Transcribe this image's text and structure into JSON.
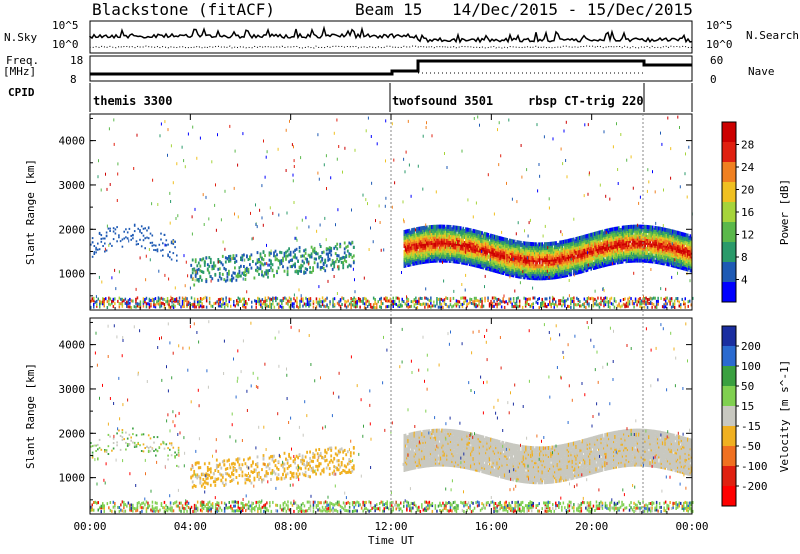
{
  "header": {
    "station": "Blackstone (fitACF)",
    "beam": "Beam 15",
    "dates": "14/Dec/2015 - 15/Dec/2015"
  },
  "top_panel": {
    "left_label": "N.Sky",
    "right_label": "N.Search",
    "left_ticks": [
      "10^5",
      "10^0"
    ],
    "right_ticks": [
      "10^5",
      "10^0"
    ]
  },
  "freq_panel": {
    "left_label_line1": "Freq.",
    "left_label_line2": "[MHz]",
    "right_label": "Nave",
    "left_ticks": [
      "18",
      "8"
    ],
    "right_ticks": [
      "60",
      "0"
    ]
  },
  "cpid": {
    "label": "CPID",
    "segments": [
      "themis 3300",
      "twofsound 3501",
      "rbsp CT-trig 220"
    ]
  },
  "chart_data": [
    {
      "type": "heatmap",
      "title": "Power",
      "xlabel": "",
      "ylabel": "Slant Range [km]",
      "colorbar_label": "Power [dB]",
      "x_ticks": [
        "00:00",
        "04:00",
        "08:00",
        "12:00",
        "16:00",
        "20:00",
        "00:00"
      ],
      "y_ticks": [
        "1000",
        "2000",
        "3000",
        "4000"
      ],
      "ylim": [
        180,
        4600
      ],
      "xlim_hours": [
        0,
        24
      ],
      "colorbar_ticks": [
        "4",
        "8",
        "12",
        "16",
        "20",
        "24",
        "28"
      ],
      "colorbar_range": [
        0,
        30
      ],
      "colorbar_colors": [
        "#0000ff",
        "#1e5ab4",
        "#2a9a6a",
        "#5ab84a",
        "#a6d43a",
        "#f0c020",
        "#f08020",
        "#e02010",
        "#cc0000"
      ]
    },
    {
      "type": "heatmap",
      "title": "Velocity",
      "xlabel": "Time UT",
      "ylabel": "Slant Range [km]",
      "colorbar_label": "Velocity [m s^-1]",
      "x_ticks": [
        "00:00",
        "04:00",
        "08:00",
        "12:00",
        "16:00",
        "20:00",
        "00:00"
      ],
      "y_ticks": [
        "1000",
        "2000",
        "3000",
        "4000"
      ],
      "ylim": [
        180,
        4600
      ],
      "xlim_hours": [
        0,
        24
      ],
      "colorbar_ticks": [
        "200",
        "100",
        "50",
        "15",
        "-15",
        "-50",
        "-100",
        "-200"
      ],
      "colorbar_colors": [
        "#1a2ea0",
        "#2a6ad0",
        "#3aa040",
        "#80d050",
        "#c8c8c0",
        "#f0b020",
        "#f07020",
        "#e02010",
        "#ff0000"
      ]
    }
  ]
}
